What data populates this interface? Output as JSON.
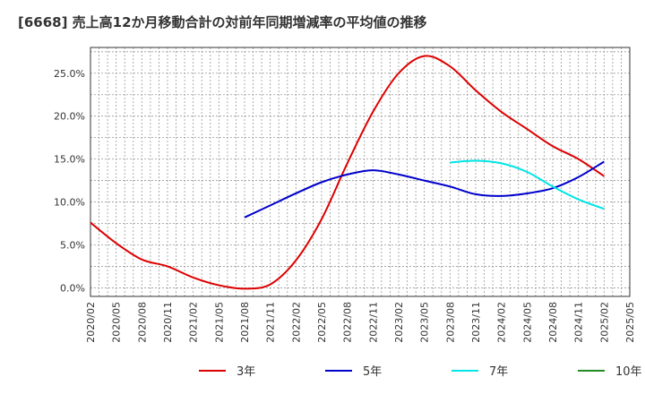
{
  "chart_data": {
    "type": "line",
    "title": "[6668]  売上高12か月移動合計の対前年同期増減率の平均値の推移",
    "xlabel": "",
    "ylabel": "",
    "ylim": [
      -1.0,
      28.0
    ],
    "x_ticks": [
      "2020/02",
      "2020/05",
      "2020/08",
      "2020/11",
      "2021/02",
      "2021/05",
      "2021/08",
      "2021/11",
      "2022/02",
      "2022/05",
      "2022/08",
      "2022/11",
      "2023/02",
      "2023/05",
      "2023/08",
      "2023/11",
      "2024/02",
      "2024/05",
      "2024/08",
      "2024/11",
      "2025/02",
      "2025/05"
    ],
    "y_ticks": [
      "0.0%",
      "5.0%",
      "10.0%",
      "15.0%",
      "20.0%",
      "25.0%"
    ],
    "y_tick_values": [
      0,
      5,
      10,
      15,
      20,
      25
    ],
    "grid": true,
    "legend_position": "bottom",
    "series": [
      {
        "name": "3年",
        "color": "#dd0000",
        "x": [
          "2020/02",
          "2020/05",
          "2020/08",
          "2020/11",
          "2021/02",
          "2021/05",
          "2021/08",
          "2021/11",
          "2022/02",
          "2022/05",
          "2022/08",
          "2022/11",
          "2023/02",
          "2023/05",
          "2023/08",
          "2023/11",
          "2024/02",
          "2024/05",
          "2024/08",
          "2024/11",
          "2025/02"
        ],
        "values": [
          7.6,
          5.2,
          3.3,
          2.5,
          1.2,
          0.3,
          -0.1,
          0.4,
          3.2,
          8.0,
          14.5,
          20.5,
          25.0,
          27.0,
          25.8,
          23.0,
          20.5,
          18.5,
          16.5,
          15.0,
          13.0
        ]
      },
      {
        "name": "5年",
        "color": "#0000cc",
        "x": [
          "2021/08",
          "2021/11",
          "2022/02",
          "2022/05",
          "2022/08",
          "2022/11",
          "2023/02",
          "2023/05",
          "2023/08",
          "2023/11",
          "2024/02",
          "2024/05",
          "2024/08",
          "2024/11",
          "2025/02"
        ],
        "values": [
          8.2,
          9.6,
          11.0,
          12.3,
          13.2,
          13.7,
          13.2,
          12.5,
          11.8,
          10.9,
          10.7,
          11.0,
          11.6,
          12.9,
          14.7
        ]
      },
      {
        "name": "7年",
        "color": "#00e5e5",
        "x": [
          "2023/08",
          "2023/11",
          "2024/02",
          "2024/05",
          "2024/08",
          "2024/11",
          "2025/02"
        ],
        "values": [
          14.6,
          14.8,
          14.5,
          13.5,
          11.8,
          10.3,
          9.2
        ]
      },
      {
        "name": "10年",
        "color": "#228b22",
        "x": [],
        "values": []
      }
    ]
  }
}
